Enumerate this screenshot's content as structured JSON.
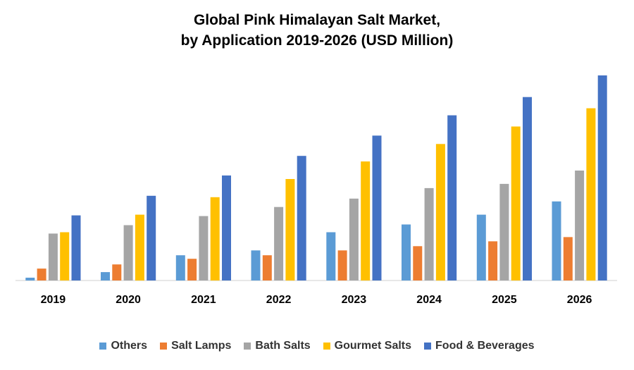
{
  "chart_data": {
    "type": "bar",
    "title_lines": [
      "Global Pink Himalayan Salt Market,",
      "by Application 2019-2026 (USD Million)"
    ],
    "categories": [
      "2019",
      "2020",
      "2021",
      "2022",
      "2023",
      "2024",
      "2025",
      "2026"
    ],
    "series": [
      {
        "name": "Others",
        "color": "#5B9BD5",
        "values": [
          4,
          12,
          36,
          43,
          69,
          80,
          94,
          113
        ]
      },
      {
        "name": "Salt Lamps",
        "color": "#ED7D31",
        "values": [
          17,
          23,
          31,
          36,
          43,
          49,
          56,
          62
        ]
      },
      {
        "name": "Bath Salts",
        "color": "#A5A5A5",
        "values": [
          67,
          79,
          92,
          105,
          117,
          132,
          138,
          157
        ]
      },
      {
        "name": "Gourmet Salts",
        "color": "#FFC000",
        "values": [
          69,
          94,
          119,
          145,
          170,
          195,
          220,
          246
        ]
      },
      {
        "name": "Food & Beverages",
        "color": "#4472C4",
        "values": [
          93,
          121,
          150,
          178,
          207,
          236,
          262,
          293
        ]
      }
    ],
    "xlabel": "",
    "ylabel": "",
    "ylim": [
      0,
      300
    ],
    "grid": false,
    "legend_position": "bottom"
  }
}
